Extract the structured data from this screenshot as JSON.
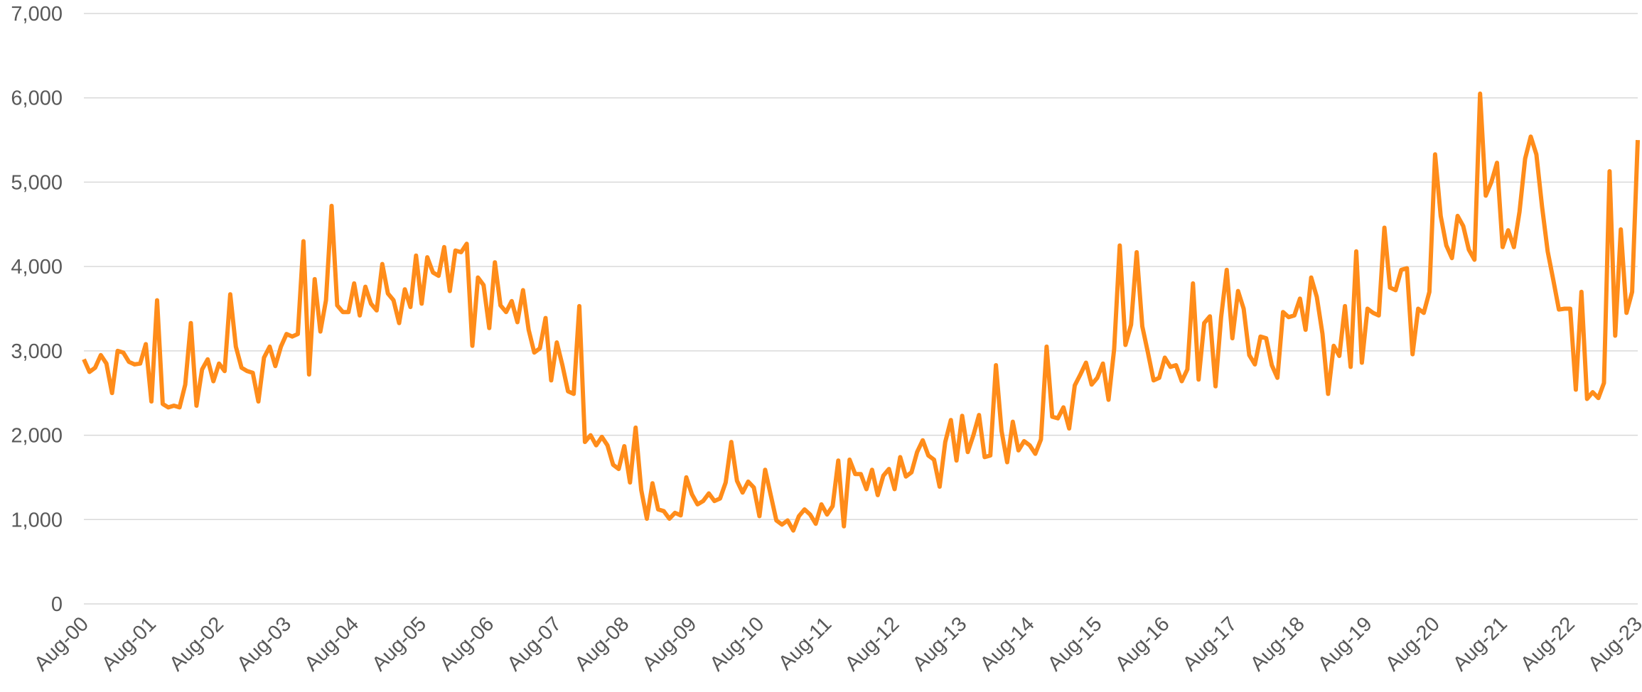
{
  "chart_data": {
    "type": "line",
    "categories": [
      "Aug-00",
      null,
      null,
      null,
      null,
      null,
      null,
      null,
      null,
      null,
      null,
      null,
      "Aug-01",
      null,
      null,
      null,
      null,
      null,
      null,
      null,
      null,
      null,
      null,
      null,
      "Aug-02",
      null,
      null,
      null,
      null,
      null,
      null,
      null,
      null,
      null,
      null,
      null,
      "Aug-03",
      null,
      null,
      null,
      null,
      null,
      null,
      null,
      null,
      null,
      null,
      null,
      "Aug-04",
      null,
      null,
      null,
      null,
      null,
      null,
      null,
      null,
      null,
      null,
      null,
      "Aug-05",
      null,
      null,
      null,
      null,
      null,
      null,
      null,
      null,
      null,
      null,
      null,
      "Aug-06",
      null,
      null,
      null,
      null,
      null,
      null,
      null,
      null,
      null,
      null,
      null,
      "Aug-07",
      null,
      null,
      null,
      null,
      null,
      null,
      null,
      null,
      null,
      null,
      null,
      "Aug-08",
      null,
      null,
      null,
      null,
      null,
      null,
      null,
      null,
      null,
      null,
      null,
      "Aug-09",
      null,
      null,
      null,
      null,
      null,
      null,
      null,
      null,
      null,
      null,
      null,
      "Aug-10",
      null,
      null,
      null,
      null,
      null,
      null,
      null,
      null,
      null,
      null,
      null,
      "Aug-11",
      null,
      null,
      null,
      null,
      null,
      null,
      null,
      null,
      null,
      null,
      null,
      "Aug-12",
      null,
      null,
      null,
      null,
      null,
      null,
      null,
      null,
      null,
      null,
      null,
      "Aug-13",
      null,
      null,
      null,
      null,
      null,
      null,
      null,
      null,
      null,
      null,
      null,
      "Aug-14",
      null,
      null,
      null,
      null,
      null,
      null,
      null,
      null,
      null,
      null,
      null,
      "Aug-15",
      null,
      null,
      null,
      null,
      null,
      null,
      null,
      null,
      null,
      null,
      null,
      "Aug-16",
      null,
      null,
      null,
      null,
      null,
      null,
      null,
      null,
      null,
      null,
      null,
      "Aug-17",
      null,
      null,
      null,
      null,
      null,
      null,
      null,
      null,
      null,
      null,
      null,
      "Aug-18",
      null,
      null,
      null,
      null,
      null,
      null,
      null,
      null,
      null,
      null,
      null,
      "Aug-19",
      null,
      null,
      null,
      null,
      null,
      null,
      null,
      null,
      null,
      null,
      null,
      "Aug-20",
      null,
      null,
      null,
      null,
      null,
      null,
      null,
      null,
      null,
      null,
      null,
      "Aug-21",
      null,
      null,
      null,
      null,
      null,
      null,
      null,
      null,
      null,
      null,
      null,
      "Aug-22",
      null,
      null,
      null,
      null,
      null,
      null,
      null,
      null,
      null,
      null,
      null,
      "Aug-23"
    ],
    "values": [
      2900,
      2750,
      2800,
      2950,
      2850,
      2500,
      3000,
      2980,
      2870,
      2840,
      2850,
      3080,
      2400,
      3600,
      2370,
      2330,
      2350,
      2330,
      2600,
      3330,
      2350,
      2780,
      2900,
      2640,
      2850,
      2760,
      3670,
      3050,
      2800,
      2760,
      2740,
      2400,
      2920,
      3050,
      2820,
      3050,
      3200,
      3170,
      3200,
      4300,
      2720,
      3850,
      3230,
      3600,
      4720,
      3540,
      3460,
      3460,
      3800,
      3420,
      3760,
      3560,
      3480,
      4030,
      3680,
      3600,
      3330,
      3730,
      3520,
      4130,
      3560,
      4110,
      3930,
      3890,
      4230,
      3710,
      4190,
      4170,
      4270,
      3060,
      3870,
      3780,
      3270,
      4050,
      3540,
      3460,
      3590,
      3340,
      3720,
      3250,
      2980,
      3030,
      3390,
      2650,
      3100,
      2830,
      2520,
      2490,
      3530,
      1920,
      2000,
      1880,
      1980,
      1880,
      1650,
      1600,
      1870,
      1440,
      2090,
      1350,
      1010,
      1430,
      1120,
      1100,
      1010,
      1080,
      1050,
      1500,
      1300,
      1180,
      1220,
      1310,
      1220,
      1250,
      1440,
      1920,
      1460,
      1320,
      1450,
      1380,
      1040,
      1590,
      1290,
      990,
      940,
      990,
      870,
      1040,
      1120,
      1060,
      950,
      1180,
      1060,
      1160,
      1700,
      920,
      1710,
      1540,
      1540,
      1360,
      1590,
      1290,
      1520,
      1600,
      1360,
      1740,
      1510,
      1560,
      1800,
      1940,
      1760,
      1710,
      1390,
      1920,
      2180,
      1700,
      2230,
      1800,
      2000,
      2240,
      1740,
      1760,
      2830,
      2050,
      1680,
      2160,
      1820,
      1930,
      1880,
      1780,
      1950,
      3050,
      2220,
      2200,
      2330,
      2080,
      2590,
      2720,
      2860,
      2600,
      2680,
      2850,
      2420,
      3020,
      4250,
      3070,
      3310,
      4170,
      3290,
      2980,
      2650,
      2680,
      2920,
      2810,
      2830,
      2640,
      2780,
      3800,
      2660,
      3330,
      3410,
      2580,
      3400,
      3960,
      3150,
      3710,
      3500,
      2950,
      2840,
      3170,
      3150,
      2830,
      2680,
      3460,
      3400,
      3420,
      3620,
      3250,
      3870,
      3640,
      3200,
      2490,
      3060,
      2940,
      3530,
      2810,
      4180,
      2860,
      3500,
      3450,
      3420,
      4460,
      3750,
      3720,
      3960,
      3980,
      2960,
      3500,
      3450,
      3700,
      5330,
      4600,
      4250,
      4100,
      4600,
      4480,
      4200,
      4080,
      6050,
      4840,
      5000,
      5230,
      4230,
      4430,
      4230,
      4650,
      5280,
      5540,
      5330,
      4710,
      4180,
      3840,
      3490,
      3500,
      3500,
      2540,
      3700,
      2430,
      2510,
      2440,
      2620,
      5130,
      3180,
      4440,
      3450,
      3700,
      5500
    ],
    "color": "#ff8c1a",
    "ylim": [
      0,
      7000
    ],
    "yticks": [
      0,
      {
        "value": 1000,
        "label": "1,000"
      },
      {
        "value": 2000,
        "label": "2,000"
      },
      {
        "value": 3000,
        "label": "3,000"
      },
      {
        "value": 4000,
        "label": "4,000"
      },
      {
        "value": 5000,
        "label": "5,000"
      },
      {
        "value": 6000,
        "label": "6,000"
      },
      {
        "value": 7000,
        "label": "7,000"
      }
    ],
    "grid": true
  }
}
